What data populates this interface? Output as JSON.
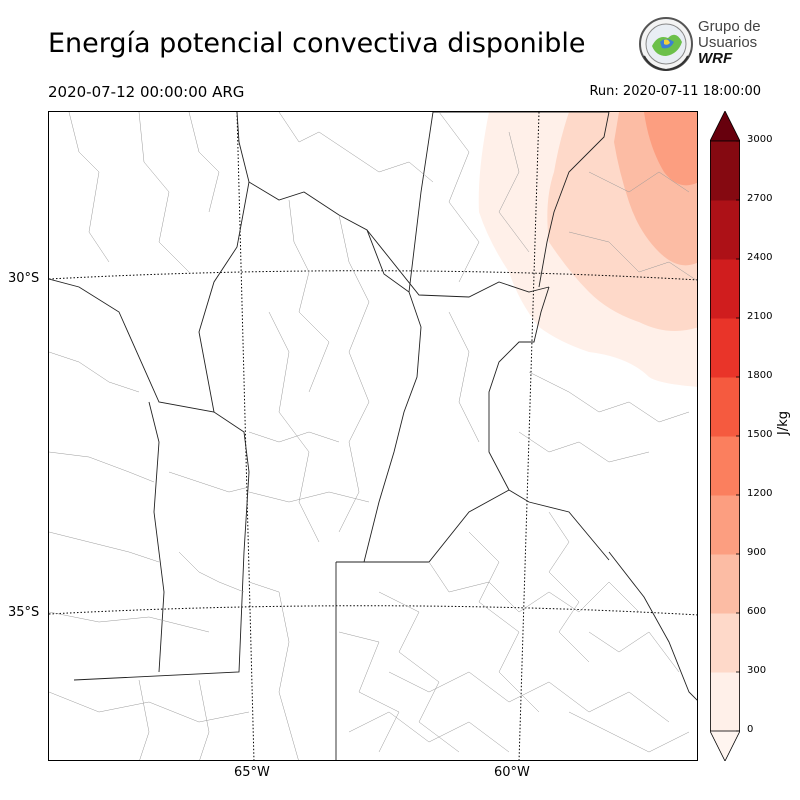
{
  "header": {
    "title": "Energía potencial convectiva disponible",
    "valid_time": "2020-07-12 00:00:00 ARG",
    "run_time": "Run: 2020-07-11 18:00:00"
  },
  "logo": {
    "line1": "Grupo de",
    "line2": "Usuarios",
    "line3": "WRF"
  },
  "map": {
    "lat_labels": [
      "30°S",
      "35°S"
    ],
    "lon_labels": [
      "65°W",
      "60°W"
    ]
  },
  "colorbar": {
    "label": "J/kg",
    "ticks": [
      "0",
      "300",
      "600",
      "900",
      "1200",
      "1500",
      "1800",
      "2100",
      "2400",
      "2700",
      "3000"
    ],
    "colors": [
      "#fff0e9",
      "#fed9c9",
      "#fcbca4",
      "#fc9e80",
      "#fb7f5e",
      "#f55a3f",
      "#e93429",
      "#d01d1e",
      "#ad1117",
      "#850911"
    ],
    "over_color": "#67000d",
    "under_color": "#fff5f0"
  }
}
